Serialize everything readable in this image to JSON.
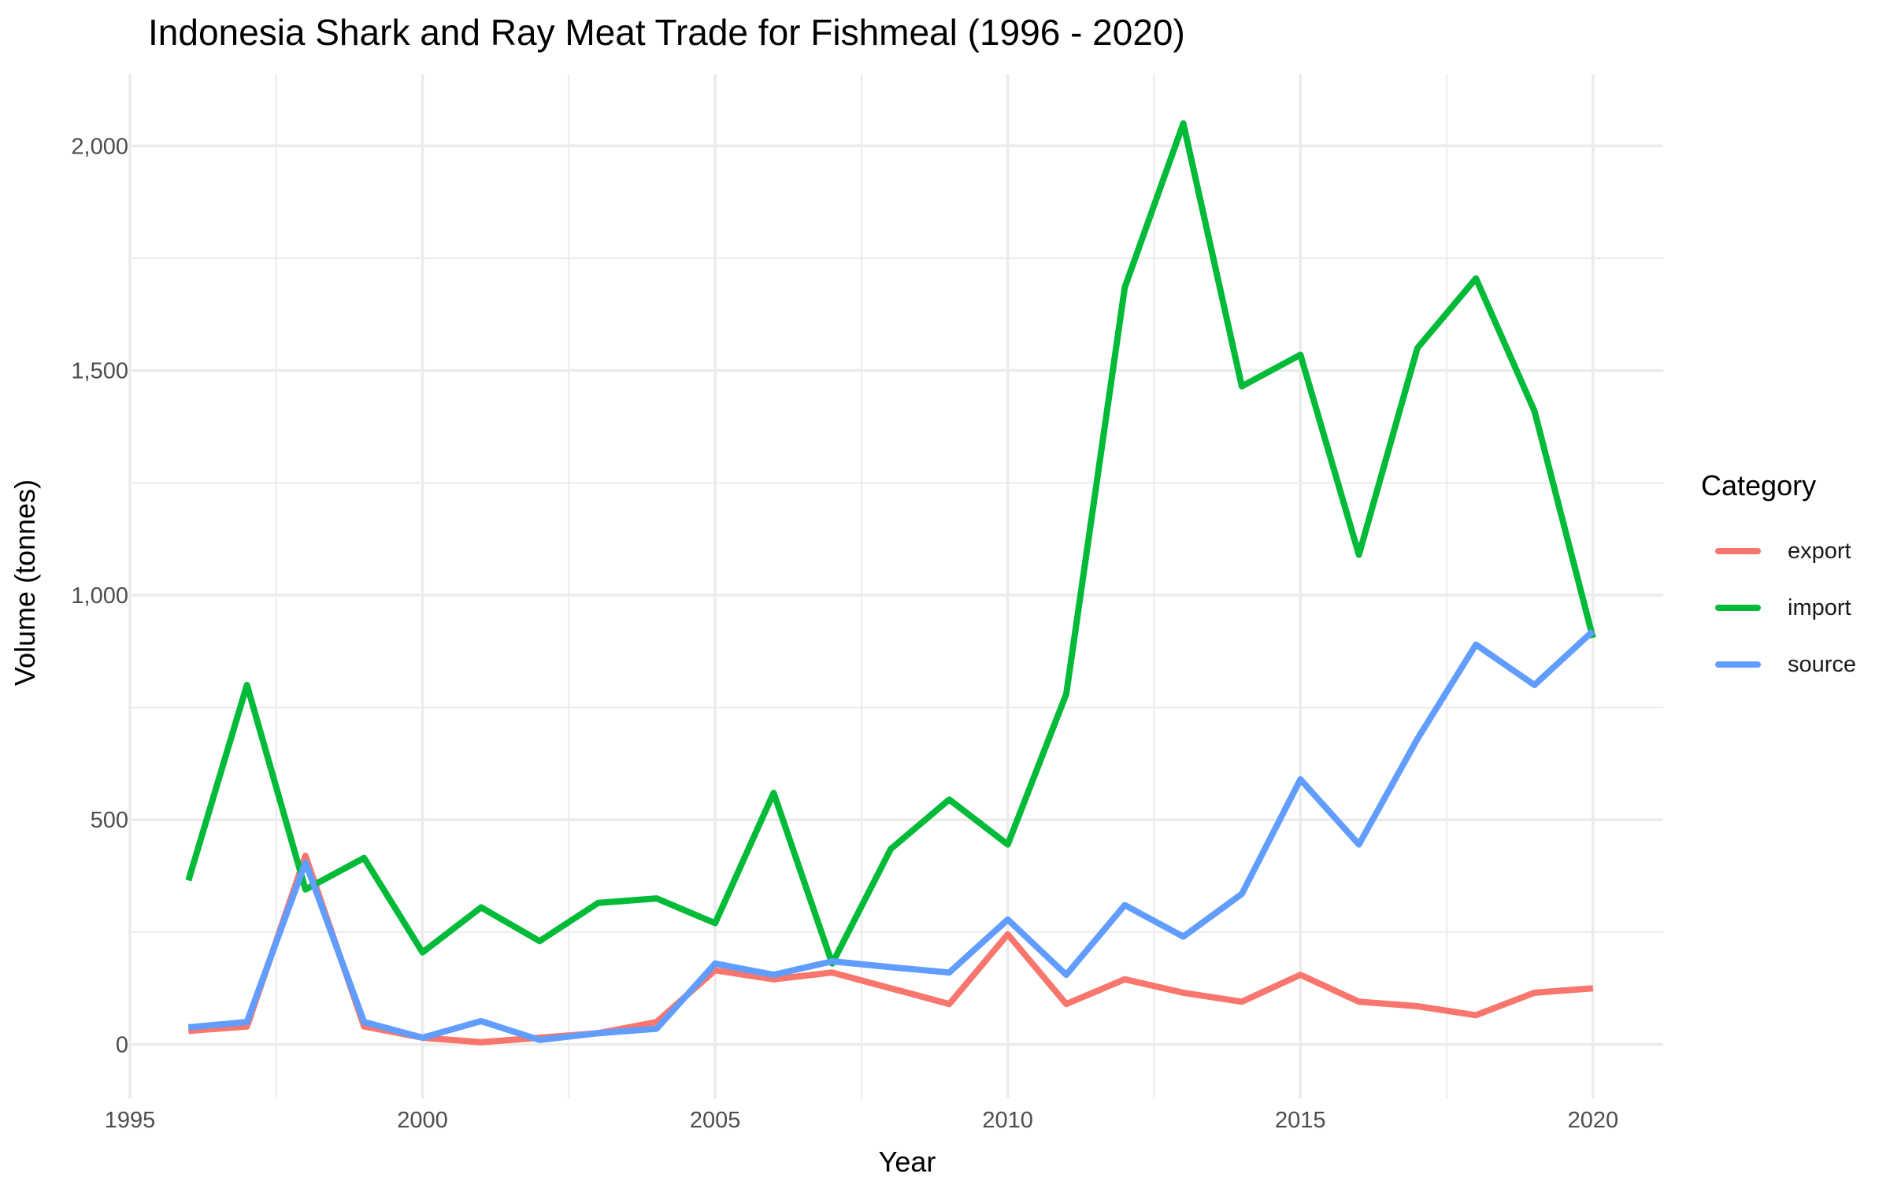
{
  "chart_data": {
    "type": "line",
    "title": "Indonesia Shark and Ray Meat Trade for Fishmeal (1996 - 2020)",
    "xlabel": "Year",
    "ylabel": "Volume (tonnes)",
    "x": [
      1996,
      1997,
      1998,
      1999,
      2000,
      2001,
      2002,
      2003,
      2004,
      2005,
      2006,
      2007,
      2008,
      2009,
      2010,
      2011,
      2012,
      2013,
      2014,
      2015,
      2016,
      2017,
      2018,
      2019,
      2020
    ],
    "xlim": [
      1995,
      2021.2
    ],
    "ylim": [
      -120,
      2160
    ],
    "x_ticks": [
      1995,
      2000,
      2005,
      2010,
      2015,
      2020
    ],
    "x_tick_labels": [
      "1995",
      "2000",
      "2005",
      "2010",
      "2015",
      "2020"
    ],
    "y_ticks": [
      0,
      500,
      1000,
      1500,
      2000
    ],
    "y_tick_labels": [
      "0",
      "500",
      "1,000",
      "1,500",
      "2,000"
    ],
    "grid": true,
    "legend_title": "Category",
    "legend_position": "right",
    "series": [
      {
        "name": "export",
        "color": "#F8766D",
        "values": [
          30,
          40,
          420,
          40,
          15,
          5,
          15,
          25,
          50,
          165,
          145,
          160,
          125,
          90,
          245,
          90,
          145,
          115,
          95,
          155,
          95,
          85,
          65,
          115,
          125
        ]
      },
      {
        "name": "import",
        "color": "#00BA38",
        "values": [
          365,
          800,
          345,
          415,
          205,
          305,
          230,
          315,
          325,
          270,
          560,
          180,
          435,
          545,
          445,
          780,
          1685,
          2050,
          1465,
          1535,
          1090,
          1550,
          1705,
          1410,
          905
        ]
      },
      {
        "name": "source",
        "color": "#619CFF",
        "values": [
          38,
          50,
          405,
          50,
          15,
          52,
          10,
          25,
          35,
          180,
          155,
          185,
          172,
          160,
          278,
          155,
          310,
          240,
          335,
          590,
          445,
          680,
          890,
          800,
          920
        ]
      }
    ]
  }
}
